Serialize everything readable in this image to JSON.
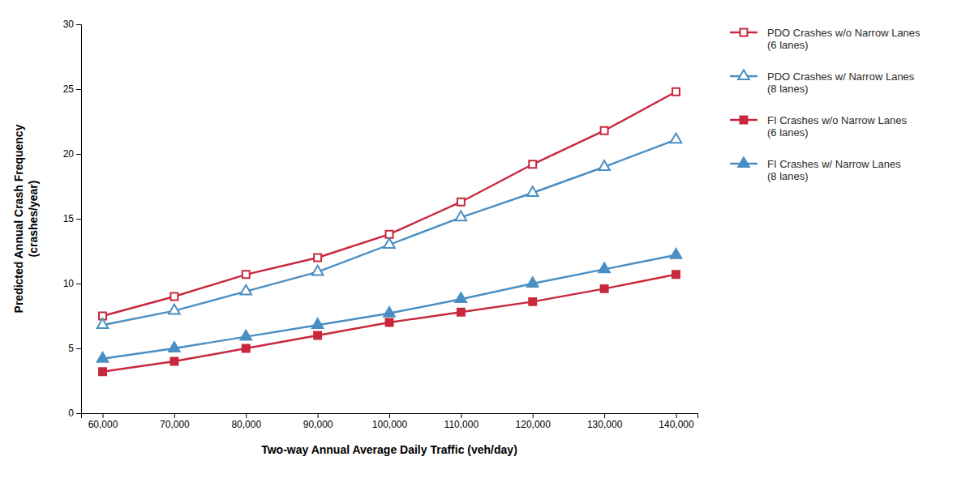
{
  "chart_data": {
    "type": "line",
    "xlabel": "Two-way Annual Average Daily Traffic (veh/day)",
    "ylabel": "Predicted Annual Crash Frequency\n(crashes/year)",
    "x": [
      60000,
      70000,
      80000,
      90000,
      100000,
      110000,
      120000,
      130000,
      140000
    ],
    "series": [
      {
        "name": "PDO Crashes w/o Narrow Lanes\n(6 lanes)",
        "color": "#C8283C",
        "marker": "square-open",
        "values": [
          7.5,
          9.0,
          10.7,
          12.0,
          13.8,
          16.3,
          19.2,
          21.8,
          24.8
        ]
      },
      {
        "name": "PDO Crashes w/ Narrow Lanes\n(8 lanes)",
        "color": "#4A8FC4",
        "marker": "triangle-open",
        "values": [
          6.8,
          7.9,
          9.4,
          10.9,
          13.0,
          15.1,
          17.0,
          19.0,
          21.1
        ]
      },
      {
        "name": "FI Crashes w/o Narrow Lanes\n(6 lanes)",
        "color": "#C8283C",
        "marker": "square",
        "values": [
          3.2,
          4.0,
          5.0,
          6.0,
          7.0,
          7.8,
          8.6,
          9.6,
          10.7
        ]
      },
      {
        "name": "FI Crashes w/ Narrow Lanes\n(8 lanes)",
        "color": "#4A8FC4",
        "marker": "triangle",
        "values": [
          4.2,
          5.0,
          5.9,
          6.8,
          7.7,
          8.8,
          10.0,
          11.1,
          12.2
        ]
      }
    ],
    "xlim": [
      57000,
      143000
    ],
    "xticks": [
      {
        "value": 60000,
        "label": "60,000"
      },
      {
        "value": 70000,
        "label": "70,000"
      },
      {
        "value": 80000,
        "label": "80,000"
      },
      {
        "value": 90000,
        "label": "90,000"
      },
      {
        "value": 100000,
        "label": "100,000"
      },
      {
        "value": 110000,
        "label": "110,000"
      },
      {
        "value": 120000,
        "label": "120,000"
      },
      {
        "value": 130000,
        "label": "130,000"
      },
      {
        "value": 140000,
        "label": "140,000"
      }
    ],
    "ylim": [
      0,
      30
    ],
    "yticks": [
      0,
      5,
      10,
      15,
      20,
      25,
      30
    ],
    "grid": false,
    "legend": "right"
  }
}
